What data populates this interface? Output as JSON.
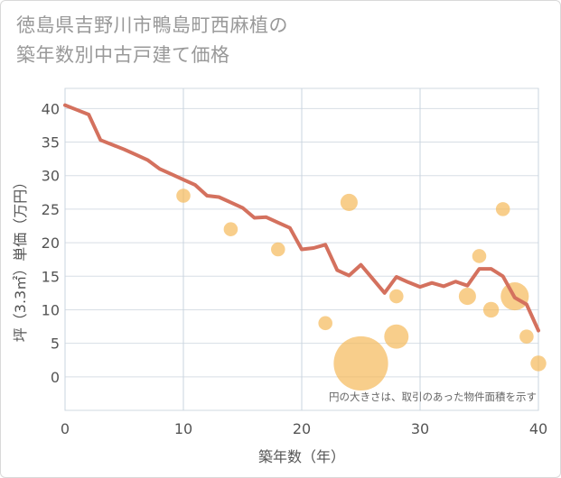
{
  "title_line1": "徳島県吉野川市鴨島町西麻植の",
  "title_line2": "築年数別中古戸建て価格",
  "chart_data": {
    "type": "scatter+line",
    "xlabel": "築年数（年）",
    "ylabel": "坪（3.3㎡）単価（万円）",
    "xlim": [
      0,
      40
    ],
    "ylim": [
      -5,
      43
    ],
    "xticks": [
      0,
      10,
      20,
      30,
      40
    ],
    "yticks": [
      0,
      5,
      10,
      15,
      20,
      25,
      30,
      35,
      40
    ],
    "grid": true,
    "note": "円の大きさは、取引のあった物件面積を示す",
    "line_color": "#d4715e",
    "point_color": "#f5b95a",
    "trend_line": {
      "x": [
        0,
        1,
        2,
        3,
        4,
        5,
        6,
        7,
        8,
        9,
        10,
        11,
        12,
        13,
        14,
        15,
        16,
        17,
        18,
        19,
        20,
        21,
        22,
        23,
        24,
        25,
        26,
        27,
        28,
        29,
        30,
        31,
        32,
        33,
        34,
        35,
        36,
        37,
        38,
        39,
        40
      ],
      "y": [
        40.5,
        39.8,
        39.1,
        35.3,
        34.6,
        33.9,
        33.1,
        32.3,
        31.0,
        30.2,
        29.4,
        28.6,
        27.0,
        26.8,
        26.0,
        25.2,
        23.7,
        23.8,
        23.0,
        22.2,
        19.0,
        19.2,
        19.7,
        15.9,
        15.1,
        16.7,
        14.6,
        12.5,
        14.9,
        14.1,
        13.4,
        14.0,
        13.5,
        14.2,
        13.6,
        16.1,
        16.1,
        15.0,
        11.8,
        10.8,
        6.9
      ]
    },
    "points": [
      {
        "x": 10,
        "y": 27,
        "size": 2
      },
      {
        "x": 14,
        "y": 22,
        "size": 2
      },
      {
        "x": 18,
        "y": 19,
        "size": 2
      },
      {
        "x": 22,
        "y": 8,
        "size": 2
      },
      {
        "x": 24,
        "y": 26,
        "size": 3
      },
      {
        "x": 25,
        "y": 2,
        "size": 30
      },
      {
        "x": 28,
        "y": 6,
        "size": 6
      },
      {
        "x": 28,
        "y": 12,
        "size": 2
      },
      {
        "x": 34,
        "y": 12,
        "size": 3
      },
      {
        "x": 35,
        "y": 18,
        "size": 2
      },
      {
        "x": 36,
        "y": 10,
        "size": 2.5
      },
      {
        "x": 37,
        "y": 25,
        "size": 2
      },
      {
        "x": 38,
        "y": 12,
        "size": 8
      },
      {
        "x": 39,
        "y": 6,
        "size": 2
      },
      {
        "x": 40,
        "y": 2,
        "size": 2.5
      }
    ]
  }
}
